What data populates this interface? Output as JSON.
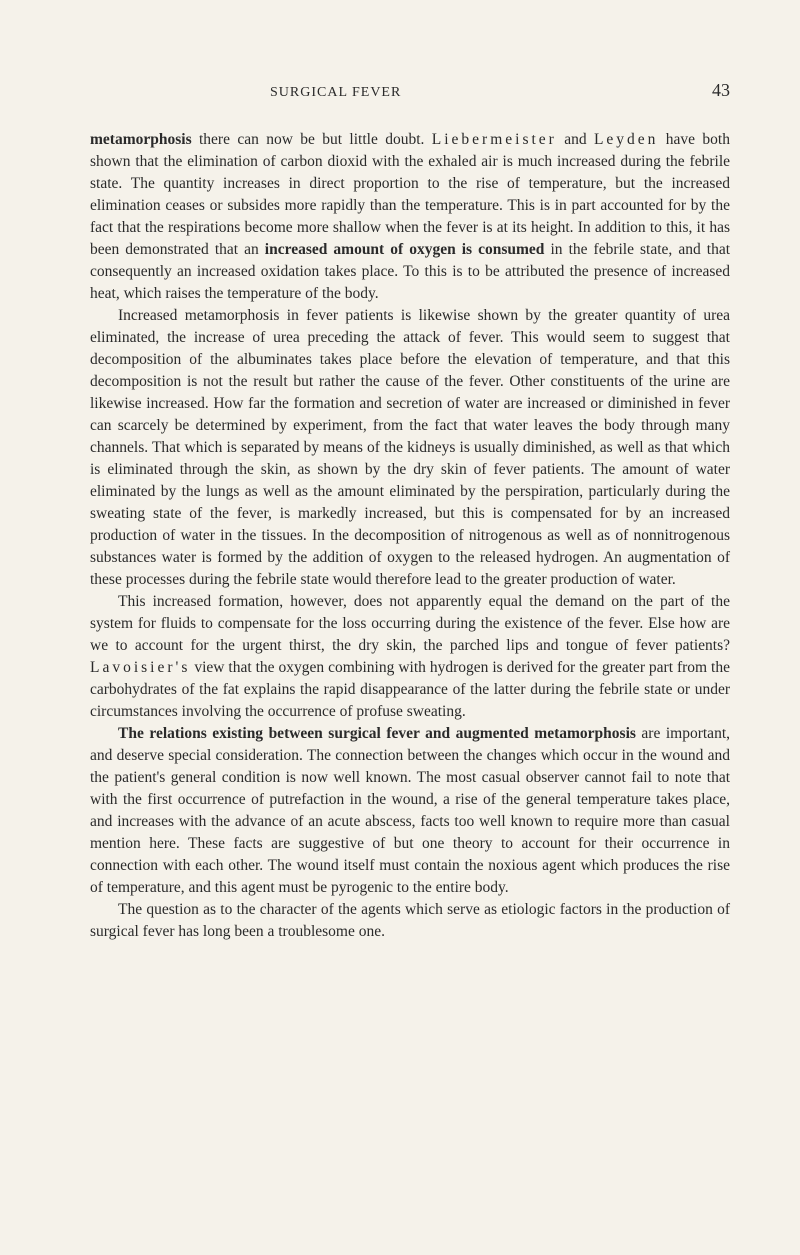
{
  "header": {
    "title": "SURGICAL FEVER",
    "page": "43"
  },
  "paragraphs": {
    "p1_part1": "metamorphosis",
    "p1_part2": " there can now be but little doubt. ",
    "p1_spaced1": "Liebermeister",
    "p1_part3": " and ",
    "p1_spaced2": "Leyden",
    "p1_part4": " have both shown that the elimination of carbon dioxid with the exhaled air is much increased during the febrile state. The quantity increases in direct proportion to the rise of temperature, but the increased elimination ceases or subsides more rapidly than the temperature. This is in part accounted for by the fact that the respirations become more shallow when the fever is at its height. In addition to this, it has been demonstrated that an ",
    "p1_bold1": "increased amount of oxygen is consumed",
    "p1_part5": " in the febrile state, and that consequently an increased oxidation takes place. To this is to be attributed the presence of increased heat, which raises the temperature of the body.",
    "p2": "Increased metamorphosis in fever patients is likewise shown by the greater quantity of urea eliminated, the increase of urea preceding the attack of fever. This would seem to suggest that decomposition of the albuminates takes place before the elevation of temperature, and that this decomposition is not the result but rather the cause of the fever. Other constituents of the urine are likewise increased. How far the formation and secretion of water are increased or diminished in fever can scarcely be determined by experiment, from the fact that water leaves the body through many channels. That which is separated by means of the kidneys is usually diminished, as well as that which is eliminated through the skin, as shown by the dry skin of fever patients. The amount of water eliminated by the lungs as well as the amount eliminated by the perspiration, particularly during the sweating state of the fever, is markedly increased, but this is compensated for by an increased production of water in the tissues. In the decomposition of nitrogenous as well as of nonnitrogenous substances water is formed by the addition of oxygen to the released hydrogen. An augmentation of these processes during the febrile state would therefore lead to the greater production of water.",
    "p3_part1": "This increased formation, however, does not apparently equal the demand on the part of the system for fluids to compensate for the loss occurring during the existence of the fever. Else how are we to account for the urgent thirst, the dry skin, the parched lips and tongue of fever patients? ",
    "p3_spaced1": "Lavoisier's",
    "p3_part2": " view that the oxygen combining with hydrogen is derived for the greater part from the carbohydrates of the fat explains the rapid disappearance of the latter during the febrile state or under circumstances involving the occurrence of profuse sweating.",
    "p4_bold1": "The relations existing between surgical fever and augmented metamorphosis",
    "p4_part1": " are important, and deserve special consideration. The connection between the changes which occur in the wound and the patient's general condition is now well known. The most casual observer cannot fail to note that with the first occurrence of putrefaction in the wound, a rise of the general temperature takes place, and increases with the advance of an acute abscess, facts too well known to require more than casual mention here. These facts are suggestive of but one theory to account for their occurrence in connection with each other. The wound itself must contain the noxious agent which produces the rise of temperature, and this agent must be pyrogenic to the entire body.",
    "p5": "The question as to the character of the agents which serve as etiologic factors in the production of surgical fever has long been a troublesome one."
  }
}
